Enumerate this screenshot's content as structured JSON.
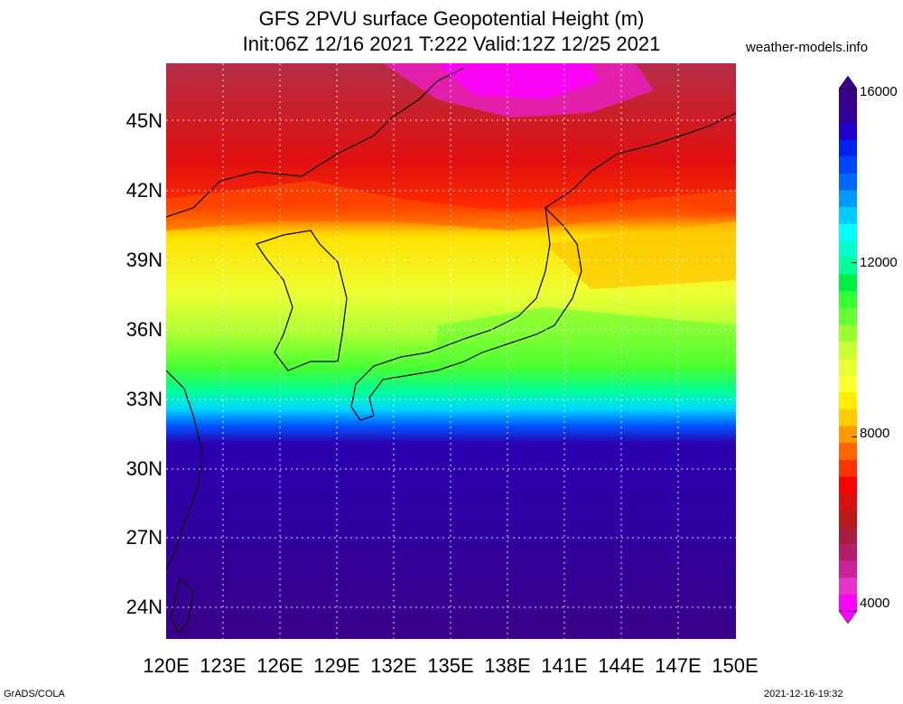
{
  "title": {
    "line1": "GFS 2PVU surface Geopotential Height (m)",
    "line2": "Init:06Z 12/16 2021 T:222 Valid:12Z 12/25 2021"
  },
  "credit": "weather-models.info",
  "map": {
    "lat_labels": [
      "45N",
      "42N",
      "39N",
      "36N",
      "33N",
      "30N",
      "27N",
      "24N"
    ],
    "lon_labels": [
      "120E",
      "123E",
      "126E",
      "129E",
      "132E",
      "135E",
      "138E",
      "141E",
      "144E",
      "147E",
      "150E"
    ],
    "lat_range": [
      22.5,
      47.5
    ],
    "lon_range": [
      120,
      150
    ]
  },
  "colorbar": {
    "tick_labels": [
      "16000",
      "12000",
      "8000",
      "4000"
    ],
    "tick_values": [
      16000,
      12000,
      8000,
      4000
    ],
    "range": [
      4000,
      16000
    ],
    "colors": [
      "#ff00ff",
      "#e633cc",
      "#cc2299",
      "#b31f6b",
      "#a61e3d",
      "#b81a1a",
      "#d91010",
      "#ff0000",
      "#ff3300",
      "#ff6600",
      "#ff9900",
      "#ffcc00",
      "#ffee00",
      "#ffff33",
      "#eaff33",
      "#ccff33",
      "#99ff33",
      "#66ff33",
      "#33ff33",
      "#00ee44",
      "#00ff99",
      "#00ffcc",
      "#00ffff",
      "#00ccff",
      "#0099ff",
      "#0066ff",
      "#0044ff",
      "#0022ee",
      "#2200cc",
      "#330099",
      "#3a008a"
    ]
  },
  "footer": {
    "left": "GrADS/COLA",
    "right": "2021-12-16-19:32"
  }
}
